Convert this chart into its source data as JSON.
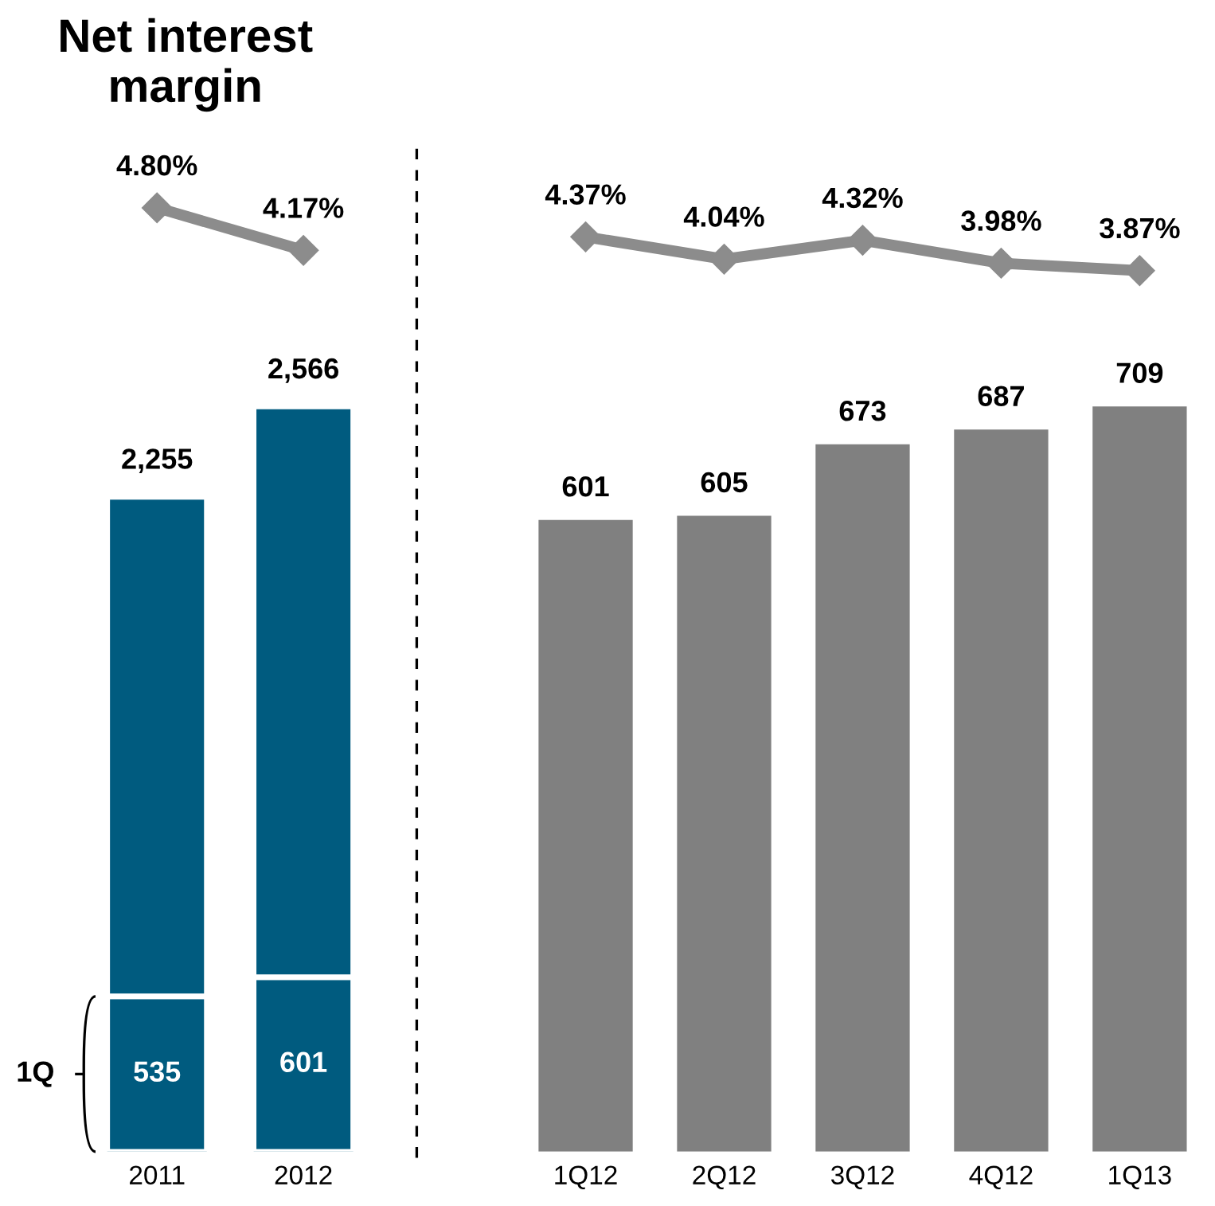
{
  "chart_data": [
    {
      "type": "line",
      "title": "Net interest margin",
      "categories": [
        null,
        null
      ],
      "tick_labels": false,
      "series": [
        {
          "color": "#8c8c8c",
          "marker": "diamond",
          "values": [
            4.8,
            4.17
          ],
          "value_labels": [
            "4.80%",
            "4.17%"
          ]
        }
      ]
    },
    {
      "type": "bar",
      "stacked": true,
      "categories": [
        "2011",
        "2012"
      ],
      "totals": [
        "2,255",
        "2,566"
      ],
      "series": [
        {
          "name": "1Q",
          "color": "#005b7f",
          "values": [
            535,
            601
          ],
          "value_labels": [
            "535",
            "601"
          ]
        },
        {
          "color": "#005b7f",
          "values": [
            1720,
            1965
          ]
        }
      ]
    },
    {
      "type": "line",
      "categories": [
        null,
        null,
        null,
        null,
        null
      ],
      "tick_labels": false,
      "series": [
        {
          "color": "#8c8c8c",
          "marker": "diamond",
          "values": [
            4.37,
            4.04,
            4.32,
            3.98,
            3.87
          ],
          "value_labels": [
            "4.37%",
            "4.04%",
            "4.32%",
            "3.98%",
            "3.87%"
          ]
        }
      ]
    },
    {
      "type": "bar",
      "categories": [
        "1Q12",
        "2Q12",
        "3Q12",
        "4Q12",
        "1Q13"
      ],
      "data_labels": true,
      "series": [
        {
          "color": "#808080",
          "values": [
            601,
            605,
            673,
            687,
            709
          ]
        }
      ]
    }
  ]
}
